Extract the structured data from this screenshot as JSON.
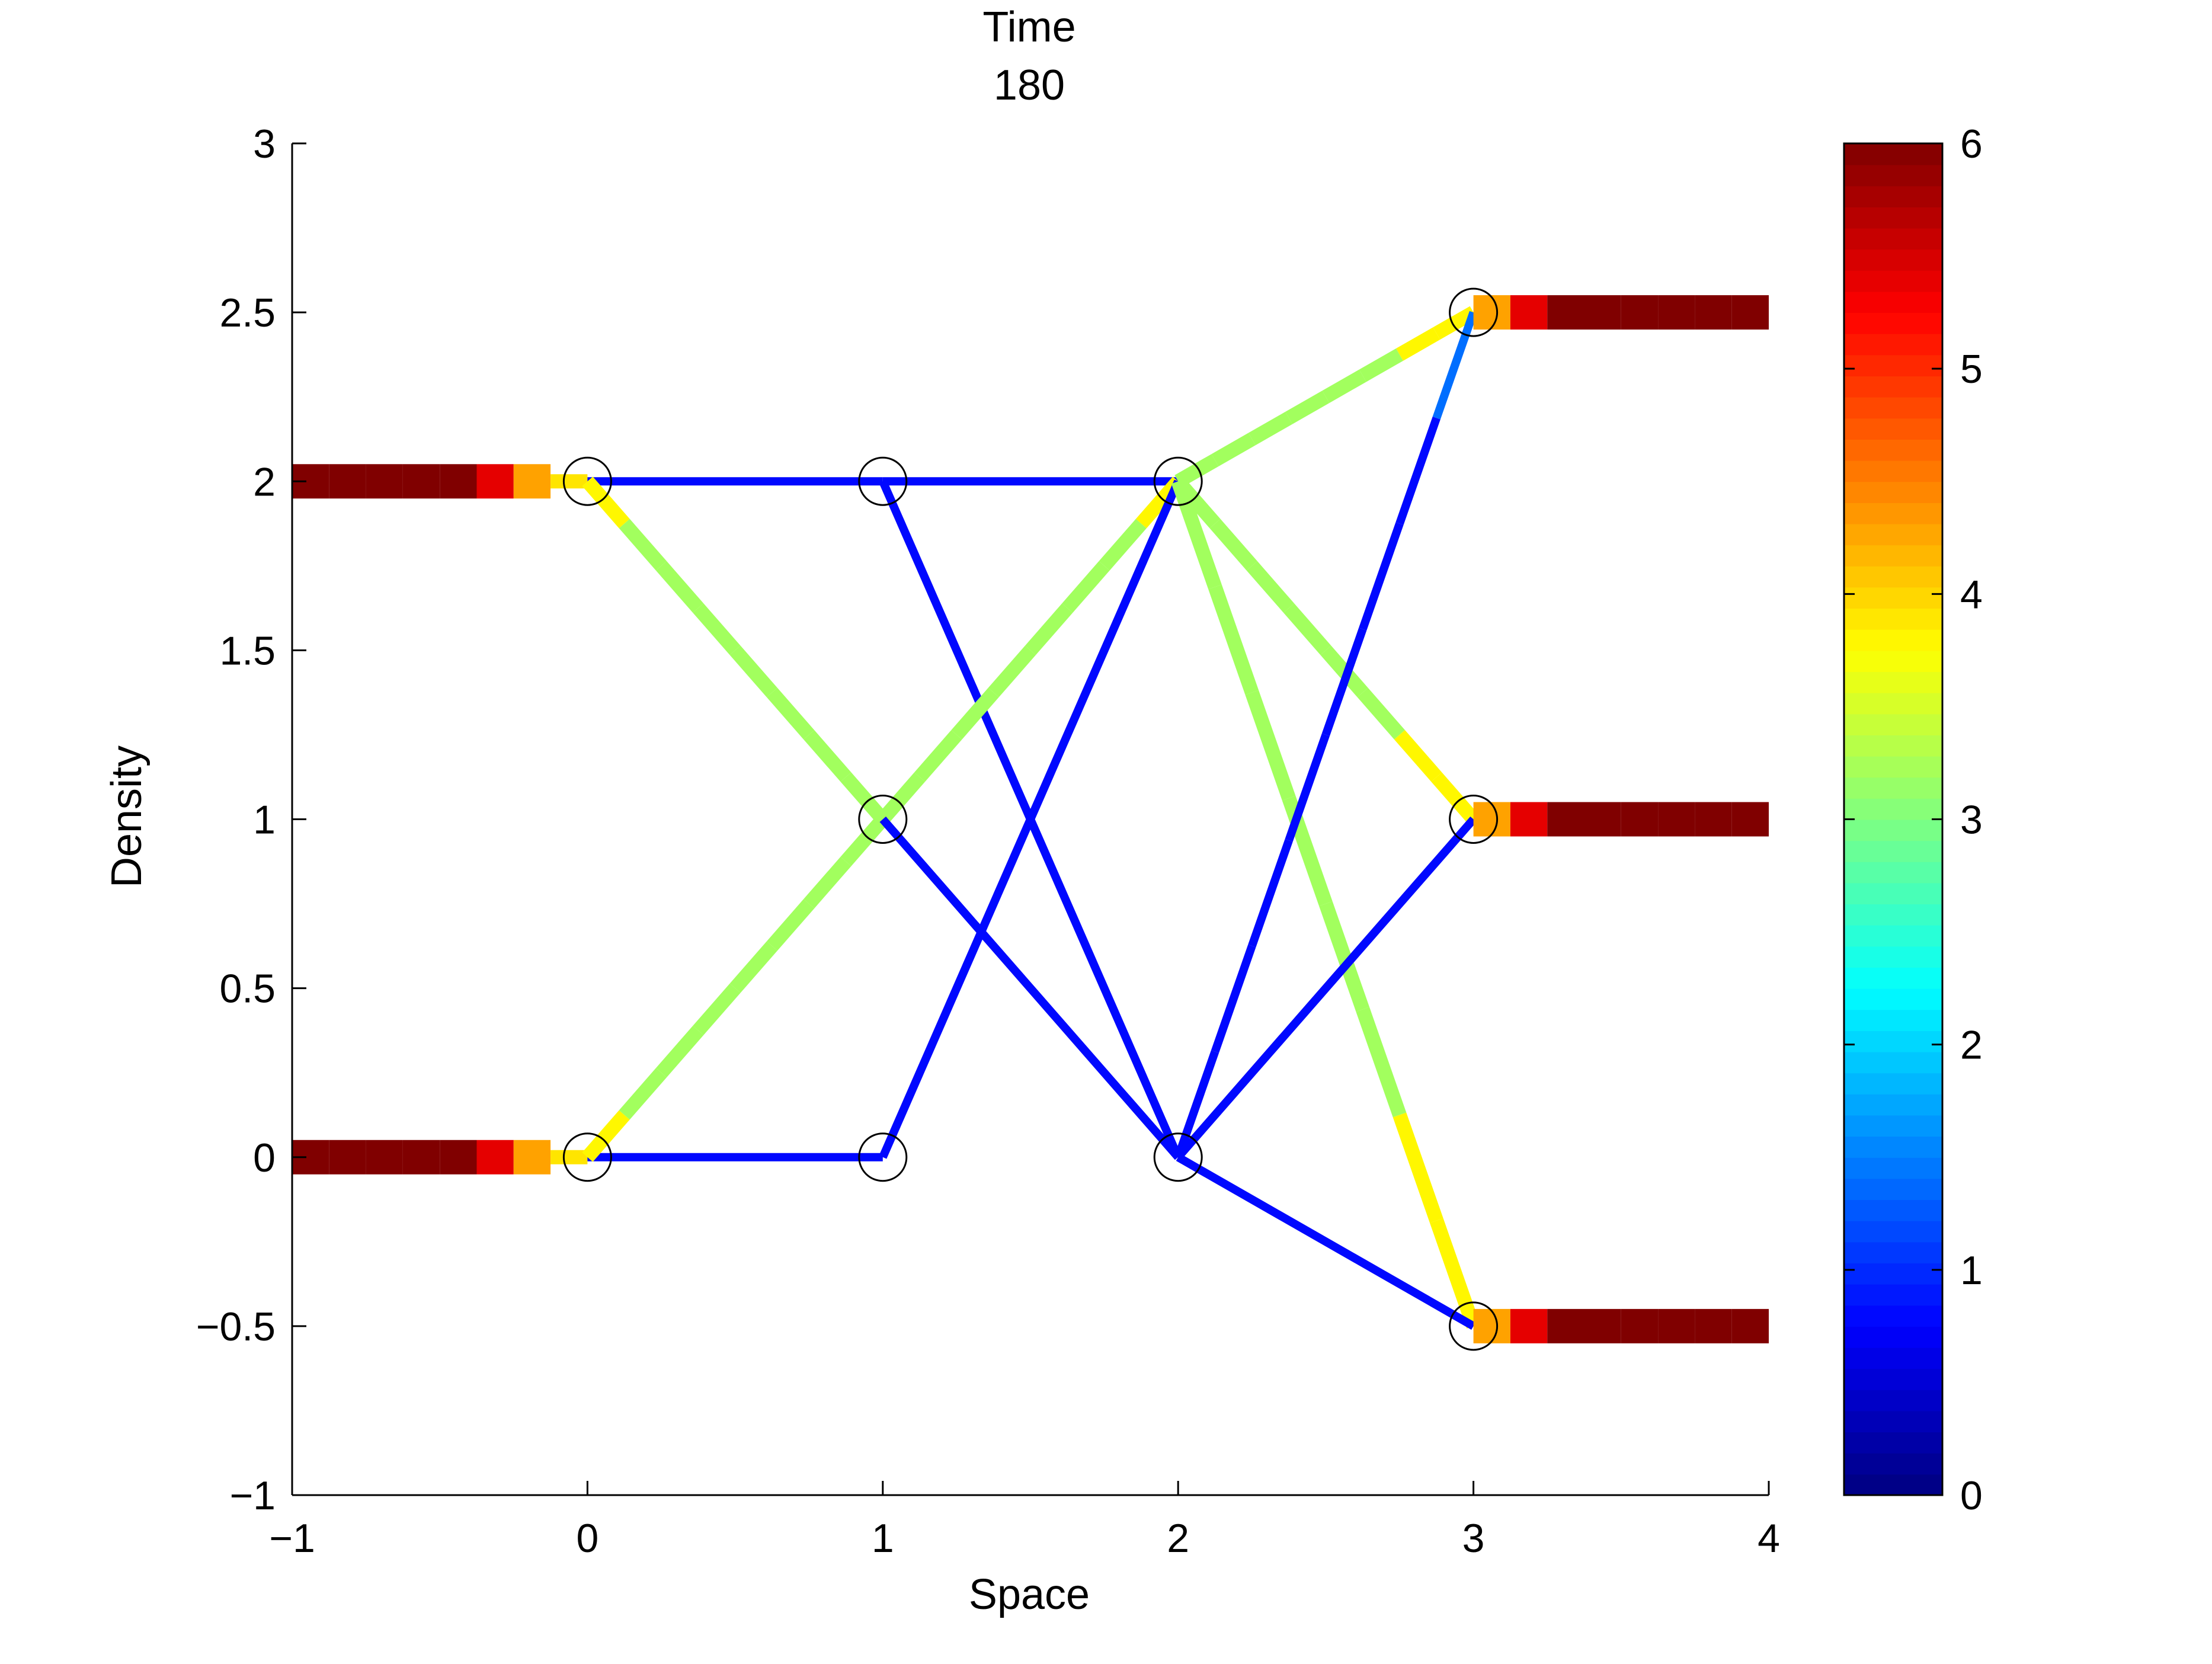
{
  "chart_data": {
    "type": "line",
    "title": "Time",
    "subtitle": "180",
    "xlabel": "Space",
    "ylabel": "Density",
    "xlim": [
      -1,
      4
    ],
    "ylim": [
      -1,
      3
    ],
    "xticks": [
      -1,
      0,
      1,
      2,
      3,
      4
    ],
    "yticks": [
      -1,
      -0.5,
      0,
      0.5,
      1,
      1.5,
      2,
      2.5,
      3
    ],
    "xtick_labels": [
      "−1",
      "0",
      "1",
      "2",
      "3",
      "4"
    ],
    "ytick_labels": [
      "−1",
      "−0.5",
      "0",
      "0.5",
      "1",
      "1.5",
      "2",
      "2.5",
      "3"
    ],
    "grid": false,
    "colorbar": {
      "range": [
        0,
        6
      ],
      "ticks": [
        0,
        1,
        2,
        3,
        4,
        5,
        6
      ],
      "tick_labels": [
        "0",
        "1",
        "2",
        "3",
        "4",
        "5",
        "6"
      ]
    },
    "nodes": [
      {
        "x": 0,
        "y": 2
      },
      {
        "x": 0,
        "y": 0
      },
      {
        "x": 1,
        "y": 2
      },
      {
        "x": 1,
        "y": 1
      },
      {
        "x": 1,
        "y": 0
      },
      {
        "x": 2,
        "y": 2
      },
      {
        "x": 2,
        "y": 0
      },
      {
        "x": 3,
        "y": 2.5
      },
      {
        "x": 3,
        "y": 1
      },
      {
        "x": 3,
        "y": -0.5
      }
    ],
    "edges": [
      {
        "from": [
          -1,
          2
        ],
        "to": [
          0,
          2
        ],
        "segments": [
          6,
          6,
          6,
          6,
          6,
          5.4,
          4.3,
          3.9
        ]
      },
      {
        "from": [
          -1,
          0
        ],
        "to": [
          0,
          0
        ],
        "segments": [
          6,
          6,
          6,
          6,
          6,
          5.4,
          4.3,
          3.9
        ]
      },
      {
        "from": [
          0,
          2
        ],
        "to": [
          1,
          2
        ],
        "segments": [
          0.8
        ]
      },
      {
        "from": [
          0,
          2
        ],
        "to": [
          1,
          1
        ],
        "segments": [
          3.8,
          3.2,
          3.2,
          3.2,
          3.2,
          3.2,
          3.2,
          3.2
        ]
      },
      {
        "from": [
          0,
          0
        ],
        "to": [
          1,
          0
        ],
        "segments": [
          0.8
        ]
      },
      {
        "from": [
          0,
          0
        ],
        "to": [
          1,
          1
        ],
        "segments": [
          3.8,
          3.2,
          3.2,
          3.2,
          3.2,
          3.2,
          3.2,
          3.2
        ]
      },
      {
        "from": [
          1,
          2
        ],
        "to": [
          2,
          2
        ],
        "segments": [
          0.8
        ]
      },
      {
        "from": [
          1,
          2
        ],
        "to": [
          2,
          0
        ],
        "segments": [
          0.8
        ]
      },
      {
        "from": [
          1,
          1
        ],
        "to": [
          2,
          2
        ],
        "segments": [
          3.2,
          3.2,
          3.2,
          3.2,
          3.2,
          3.2,
          3.2,
          3.8
        ]
      },
      {
        "from": [
          1,
          1
        ],
        "to": [
          2,
          0
        ],
        "segments": [
          0.8
        ]
      },
      {
        "from": [
          1,
          0
        ],
        "to": [
          2,
          2
        ],
        "segments": [
          0.8
        ]
      },
      {
        "from": [
          2,
          2
        ],
        "to": [
          3,
          2.5
        ],
        "segments": [
          3.2,
          3.2,
          3.2,
          3.2,
          3.2,
          3.2,
          3.8,
          3.8
        ]
      },
      {
        "from": [
          2,
          2
        ],
        "to": [
          3,
          1
        ],
        "segments": [
          3.2,
          3.2,
          3.2,
          3.2,
          3.2,
          3.2,
          3.8,
          3.8
        ]
      },
      {
        "from": [
          2,
          2
        ],
        "to": [
          3,
          -0.5
        ],
        "segments": [
          3.2,
          3.2,
          3.2,
          3.2,
          3.2,
          3.2,
          3.8,
          3.8
        ]
      },
      {
        "from": [
          2,
          0
        ],
        "to": [
          3,
          2.5
        ],
        "segments": [
          0.8,
          0.8,
          0.8,
          0.8,
          0.8,
          0.8,
          0.8,
          1.4
        ]
      },
      {
        "from": [
          2,
          0
        ],
        "to": [
          3,
          1
        ],
        "segments": [
          0.8
        ]
      },
      {
        "from": [
          2,
          0
        ],
        "to": [
          3,
          -0.5
        ],
        "segments": [
          0.8
        ]
      },
      {
        "from": [
          3,
          2.5
        ],
        "to": [
          4,
          2.5
        ],
        "segments": [
          4.3,
          5.4,
          6,
          6,
          6,
          6,
          6,
          6
        ]
      },
      {
        "from": [
          3,
          1
        ],
        "to": [
          4,
          1
        ],
        "segments": [
          4.3,
          5.4,
          6,
          6,
          6,
          6,
          6,
          6
        ]
      },
      {
        "from": [
          3,
          -0.5
        ],
        "to": [
          4,
          -0.5
        ],
        "segments": [
          4.3,
          5.4,
          6,
          6,
          6,
          6,
          6,
          6
        ]
      }
    ]
  }
}
